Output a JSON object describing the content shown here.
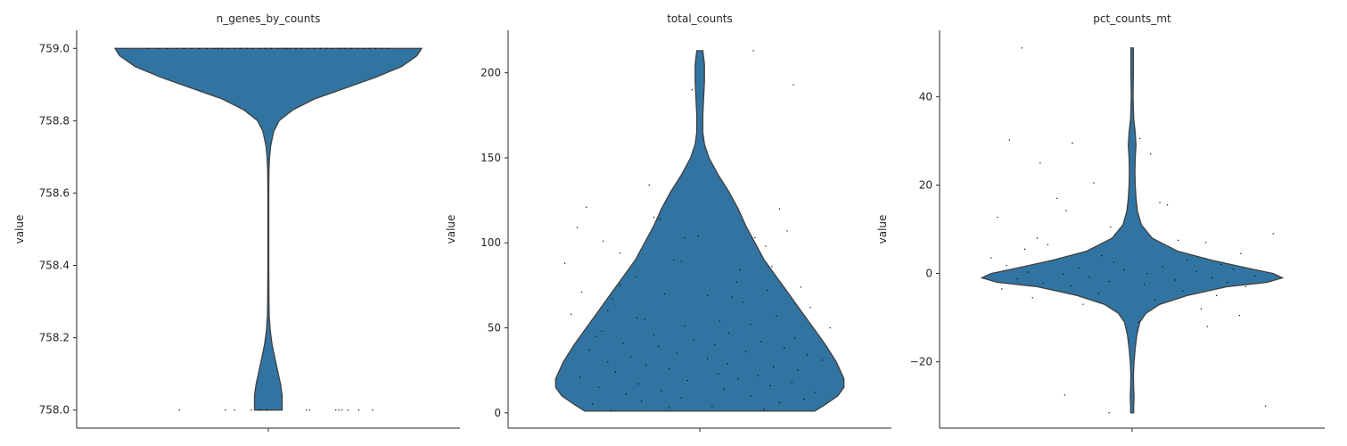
{
  "chart_data": [
    {
      "type": "violin",
      "title": "n_genes_by_counts",
      "ylabel": "value",
      "xlabel": "",
      "ylim": [
        757.95,
        759.05
      ],
      "yticks": [
        758.0,
        758.2,
        758.4,
        758.6,
        758.8,
        759.0
      ],
      "ytick_labels": [
        "758.0",
        "758.2",
        "758.4",
        "758.6",
        "758.8",
        "759.0"
      ],
      "data_min": 758.0,
      "data_max": 759.0,
      "color": "#3274a1",
      "density": [
        [
          759.0,
          1.0
        ],
        [
          758.98,
          0.97
        ],
        [
          758.95,
          0.87
        ],
        [
          758.92,
          0.7
        ],
        [
          758.89,
          0.5
        ],
        [
          758.86,
          0.3
        ],
        [
          758.83,
          0.16
        ],
        [
          758.8,
          0.07
        ],
        [
          758.77,
          0.035
        ],
        [
          758.73,
          0.015
        ],
        [
          758.7,
          0.008
        ],
        [
          758.66,
          0.004
        ],
        [
          758.6,
          0.003
        ],
        [
          758.4,
          0.003
        ],
        [
          758.3,
          0.004
        ],
        [
          758.26,
          0.006
        ],
        [
          758.22,
          0.012
        ],
        [
          758.18,
          0.025
        ],
        [
          758.14,
          0.045
        ],
        [
          758.1,
          0.065
        ],
        [
          758.07,
          0.08
        ],
        [
          758.04,
          0.09
        ],
        [
          758.02,
          0.09
        ],
        [
          758.0,
          0.09
        ]
      ],
      "points": {
        "y": [
          759.0,
          759.0,
          759.0,
          759.0,
          759.0,
          759.0,
          759.0,
          759.0,
          759.0,
          759.0,
          759.0,
          759.0,
          759.0,
          759.0,
          759.0,
          759.0,
          759.0,
          759.0,
          759.0,
          759.0,
          759.0,
          759.0,
          759.0,
          759.0,
          759.0,
          759.0,
          759.0,
          759.0,
          759.0,
          759.0,
          759.0,
          759.0,
          759.0,
          759.0,
          759.0,
          759.0,
          759.0,
          759.0,
          759.0,
          759.0,
          758.0,
          758.0,
          758.0,
          758.0,
          758.0,
          758.0,
          758.0,
          758.0,
          758.0,
          758.0,
          758.0,
          758.0,
          758.0,
          758.0
        ],
        "jitter": [
          -0.78,
          -0.72,
          -0.66,
          -0.6,
          -0.55,
          -0.5,
          -0.45,
          -0.4,
          -0.35,
          -0.3,
          -0.26,
          -0.22,
          -0.18,
          -0.14,
          -0.1,
          -0.06,
          -0.02,
          0.02,
          0.06,
          0.1,
          0.14,
          0.18,
          0.22,
          0.26,
          0.3,
          0.34,
          0.38,
          0.42,
          0.46,
          0.5,
          0.54,
          0.58,
          0.62,
          0.66,
          0.7,
          0.74,
          0.78,
          -0.33,
          0.12,
          0.48,
          -0.58,
          -0.28,
          -0.22,
          -0.11,
          -0.05,
          -0.01,
          0.25,
          0.27,
          0.44,
          0.46,
          0.48,
          0.52,
          0.59,
          0.68
        ]
      }
    },
    {
      "type": "violin",
      "title": "total_counts",
      "ylabel": "value",
      "xlabel": "",
      "ylim": [
        -9,
        225
      ],
      "yticks": [
        0,
        50,
        100,
        150,
        200
      ],
      "ytick_labels": [
        "0",
        "50",
        "100",
        "150",
        "200"
      ],
      "data_min": 1,
      "data_max": 213,
      "color": "#3274a1",
      "density": [
        [
          213,
          0.02
        ],
        [
          205,
          0.03
        ],
        [
          195,
          0.03
        ],
        [
          185,
          0.025
        ],
        [
          175,
          0.02
        ],
        [
          165,
          0.02
        ],
        [
          158,
          0.03
        ],
        [
          150,
          0.06
        ],
        [
          140,
          0.12
        ],
        [
          130,
          0.19
        ],
        [
          120,
          0.25
        ],
        [
          110,
          0.3
        ],
        [
          100,
          0.36
        ],
        [
          90,
          0.42
        ],
        [
          80,
          0.5
        ],
        [
          70,
          0.58
        ],
        [
          60,
          0.66
        ],
        [
          50,
          0.74
        ],
        [
          40,
          0.82
        ],
        [
          30,
          0.89
        ],
        [
          20,
          0.94
        ],
        [
          15,
          0.94
        ],
        [
          10,
          0.9
        ],
        [
          5,
          0.82
        ],
        [
          1,
          0.75
        ]
      ],
      "points": {
        "y": [
          213,
          193,
          190,
          134,
          121,
          120,
          115,
          114,
          109,
          107,
          104,
          103,
          103,
          101,
          98,
          94,
          90,
          89,
          88,
          86,
          84,
          80,
          77,
          75,
          74,
          72,
          71,
          70,
          69,
          68,
          67,
          65,
          62,
          60,
          58,
          57,
          56,
          55,
          54,
          52,
          51,
          50,
          48,
          47,
          46,
          45,
          44,
          43,
          42,
          41,
          40,
          39,
          38,
          37,
          36,
          35,
          34,
          33,
          32,
          31,
          30,
          29,
          28,
          27,
          26,
          25,
          24,
          23,
          22,
          21,
          20,
          19,
          18,
          17,
          16,
          15,
          14,
          13,
          12,
          11,
          10,
          9,
          8,
          7,
          6,
          5,
          4,
          3,
          2,
          1
        ],
        "jitter": [
          0.35,
          0.61,
          -0.05,
          -0.33,
          -0.74,
          0.52,
          -0.3,
          -0.26,
          -0.8,
          0.57,
          -0.01,
          0.36,
          -0.1,
          -0.63,
          0.43,
          -0.52,
          -0.17,
          -0.12,
          -0.88,
          0.47,
          0.26,
          -0.42,
          0.24,
          -0.52,
          0.66,
          0.44,
          -0.77,
          -0.23,
          0.05,
          0.21,
          -0.57,
          0.28,
          0.72,
          -0.6,
          -0.84,
          0.5,
          -0.41,
          -0.36,
          0.13,
          0.33,
          -0.1,
          0.85,
          -0.64,
          0.19,
          -0.3,
          -0.68,
          0.62,
          -0.04,
          0.4,
          -0.5,
          0.1,
          -0.27,
          0.55,
          -0.72,
          0.3,
          -0.15,
          0.7,
          -0.45,
          0.05,
          0.8,
          -0.6,
          0.18,
          -0.35,
          0.48,
          -0.2,
          0.64,
          -0.55,
          0.12,
          0.38,
          -0.78,
          0.25,
          -0.08,
          0.6,
          -0.4,
          0.46,
          -0.66,
          0.16,
          -0.25,
          0.75,
          -0.48,
          0.33,
          -0.12,
          0.68,
          -0.38,
          0.52,
          -0.7,
          0.08,
          -0.2,
          0.42,
          -0.58
        ]
      }
    },
    {
      "type": "violin",
      "title": "pct_counts_mt",
      "ylabel": "value",
      "xlabel": "",
      "ylim": [
        -35,
        55
      ],
      "yticks": [
        -20,
        0,
        20,
        40
      ],
      "ytick_labels": [
        "−20",
        "0",
        "20",
        "40"
      ],
      "data_min": -31.5,
      "data_max": 51,
      "color": "#3274a1",
      "density": [
        [
          51,
          0.008
        ],
        [
          46,
          0.008
        ],
        [
          40,
          0.006
        ],
        [
          35,
          0.01
        ],
        [
          32,
          0.02
        ],
        [
          29,
          0.025
        ],
        [
          26,
          0.02
        ],
        [
          23,
          0.018
        ],
        [
          20,
          0.02
        ],
        [
          17,
          0.025
        ],
        [
          14,
          0.035
        ],
        [
          11,
          0.06
        ],
        [
          8,
          0.13
        ],
        [
          5,
          0.3
        ],
        [
          3,
          0.52
        ],
        [
          1,
          0.78
        ],
        [
          0,
          0.92
        ],
        [
          -1,
          0.98
        ],
        [
          -2,
          0.88
        ],
        [
          -3,
          0.62
        ],
        [
          -5,
          0.36
        ],
        [
          -7,
          0.18
        ],
        [
          -9,
          0.09
        ],
        [
          -11,
          0.05
        ],
        [
          -14,
          0.03
        ],
        [
          -17,
          0.02
        ],
        [
          -20,
          0.012
        ],
        [
          -23,
          0.008
        ],
        [
          -26,
          0.01
        ],
        [
          -28,
          0.012
        ],
        [
          -30,
          0.01
        ],
        [
          -31.5,
          0.01
        ]
      ],
      "points": {
        "y": [
          51,
          30.5,
          30.2,
          29.5,
          27,
          25,
          20.5,
          17,
          16,
          15.5,
          14.2,
          12.7,
          10.5,
          9,
          8,
          7.5,
          7,
          6.5,
          5.5,
          4.5,
          4,
          3.5,
          3,
          2.5,
          2,
          1.8,
          1.5,
          1.2,
          1,
          0.8,
          0.5,
          0.3,
          0,
          -0.2,
          -0.5,
          -0.8,
          -1,
          -1.2,
          -1.5,
          -1.8,
          -2,
          -2.2,
          -2.5,
          -2.8,
          -3,
          -3.5,
          -4,
          -4.5,
          -5,
          -5.5,
          -6,
          -7,
          -8,
          -9.5,
          -11,
          -12,
          -27.5,
          -30,
          -31.5
        ],
        "jitter": [
          -0.72,
          0.05,
          -0.8,
          -0.39,
          0.12,
          -0.6,
          -0.25,
          -0.49,
          0.18,
          0.23,
          -0.43,
          -0.88,
          -0.14,
          0.92,
          -0.62,
          0.3,
          0.48,
          -0.55,
          -0.7,
          0.71,
          -0.2,
          -0.92,
          0.36,
          -0.12,
          0.58,
          -0.82,
          0.2,
          -0.35,
          0.66,
          -0.05,
          0.42,
          -0.68,
          0.1,
          -0.45,
          0.8,
          -0.28,
          0.52,
          -0.75,
          0.28,
          -0.15,
          0.62,
          -0.58,
          0.08,
          -0.4,
          0.74,
          -0.85,
          0.33,
          -0.22,
          0.55,
          -0.65,
          0.15,
          -0.32,
          0.45,
          0.7,
          0.04,
          0.49,
          -0.44,
          0.87,
          -0.15
        ]
      }
    }
  ]
}
